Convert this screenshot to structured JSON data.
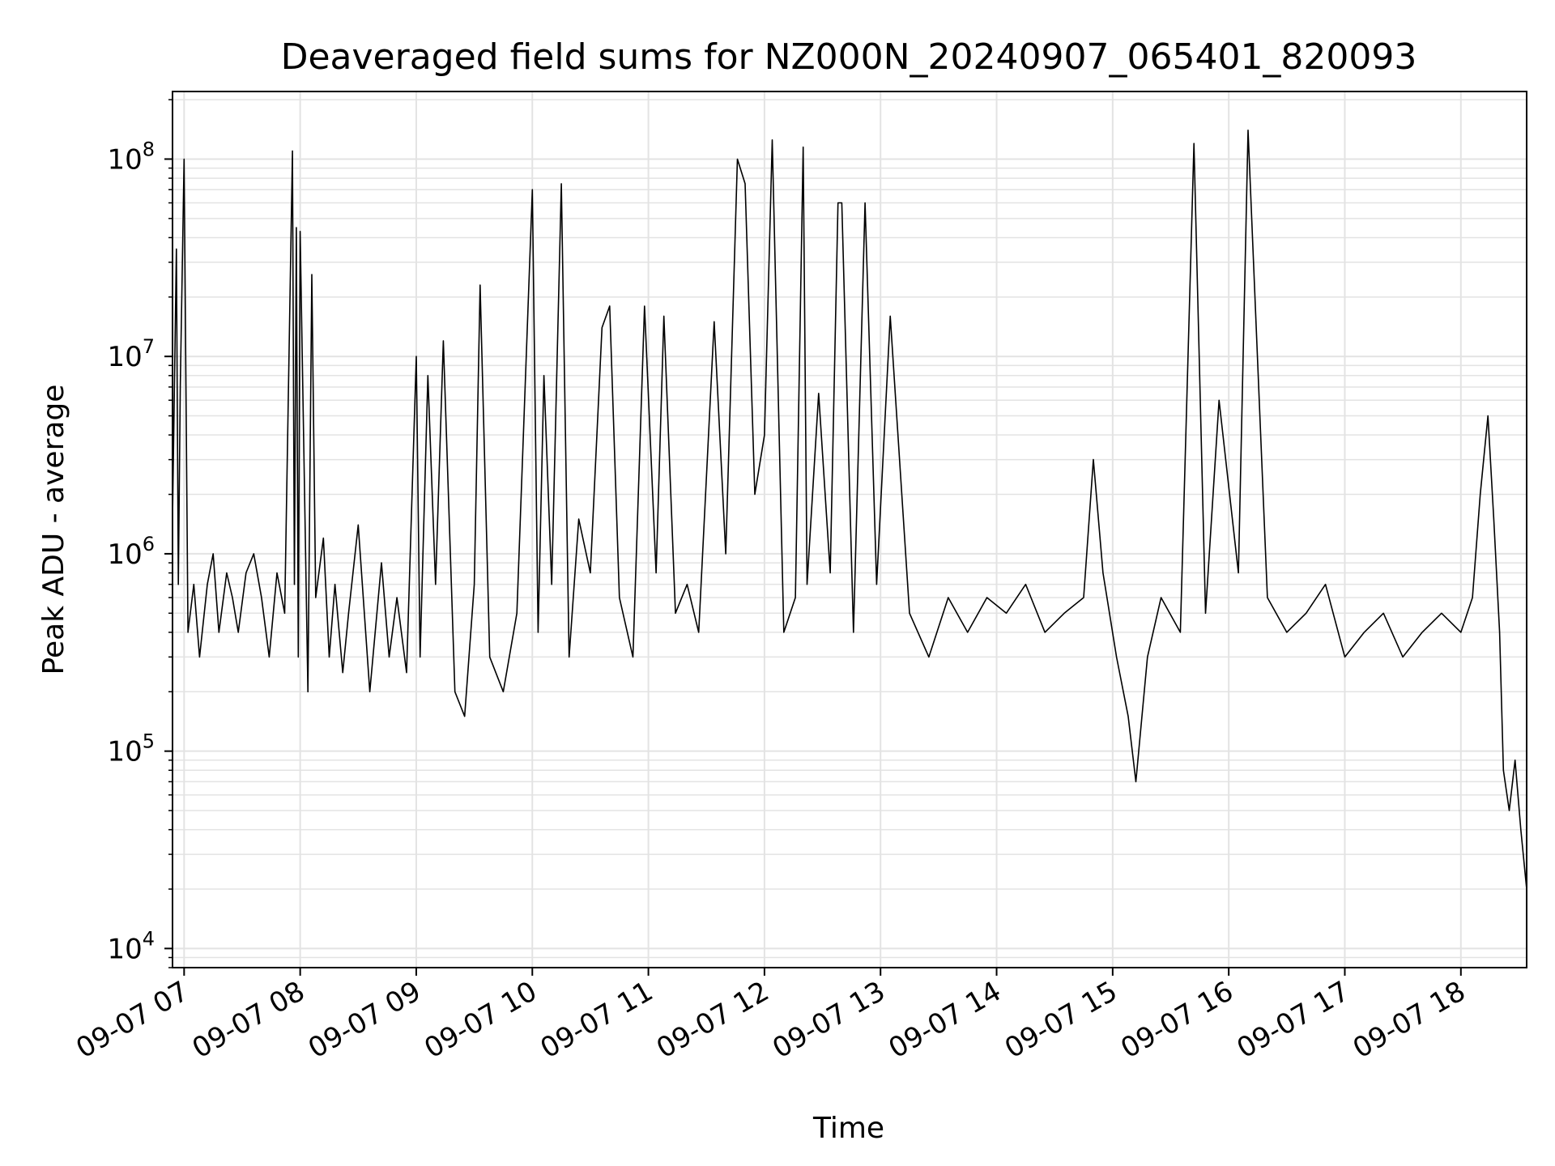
{
  "chart_data": {
    "type": "line",
    "title": "Deaveraged field sums for NZ000N_20240907_065401_820093",
    "xlabel": "Time",
    "ylabel": "Peak ADU - average",
    "yscale": "log",
    "ylim": [
      8000,
      220000000
    ],
    "xlim": [
      "2024-09-07 06:54",
      "2024-09-07 18:34"
    ],
    "grid": true,
    "legend": "none",
    "line_color": "#000000",
    "x_ticks": [
      {
        "at": "2024-09-07 07:00",
        "label": "09-07 07"
      },
      {
        "at": "2024-09-07 08:00",
        "label": "09-07 08"
      },
      {
        "at": "2024-09-07 09:00",
        "label": "09-07 09"
      },
      {
        "at": "2024-09-07 10:00",
        "label": "09-07 10"
      },
      {
        "at": "2024-09-07 11:00",
        "label": "09-07 11"
      },
      {
        "at": "2024-09-07 12:00",
        "label": "09-07 12"
      },
      {
        "at": "2024-09-07 13:00",
        "label": "09-07 13"
      },
      {
        "at": "2024-09-07 14:00",
        "label": "09-07 14"
      },
      {
        "at": "2024-09-07 15:00",
        "label": "09-07 15"
      },
      {
        "at": "2024-09-07 16:00",
        "label": "09-07 16"
      },
      {
        "at": "2024-09-07 17:00",
        "label": "09-07 17"
      },
      {
        "at": "2024-09-07 18:00",
        "label": "09-07 18"
      }
    ],
    "y_ticks": [
      {
        "value": 10000,
        "base": "10",
        "exp": "4"
      },
      {
        "value": 100000,
        "base": "10",
        "exp": "5"
      },
      {
        "value": 1000000,
        "base": "10",
        "exp": "6"
      },
      {
        "value": 10000000,
        "base": "10",
        "exp": "7"
      },
      {
        "value": 100000000,
        "base": "10",
        "exp": "8"
      }
    ],
    "series": [
      {
        "x": [
          "2024-09-07 06:54",
          "2024-09-07 06:56",
          "2024-09-07 06:57",
          "2024-09-07 06:58",
          "2024-09-07 07:00",
          "2024-09-07 07:02",
          "2024-09-07 07:05",
          "2024-09-07 07:08",
          "2024-09-07 07:12",
          "2024-09-07 07:15",
          "2024-09-07 07:18",
          "2024-09-07 07:22",
          "2024-09-07 07:25",
          "2024-09-07 07:28",
          "2024-09-07 07:32",
          "2024-09-07 07:36",
          "2024-09-07 07:40",
          "2024-09-07 07:44",
          "2024-09-07 07:48",
          "2024-09-07 07:52",
          "2024-09-07 07:56",
          "2024-09-07 07:57",
          "2024-09-07 07:58",
          "2024-09-07 07:59",
          "2024-09-07 08:00",
          "2024-09-07 08:04",
          "2024-09-07 08:06",
          "2024-09-07 08:08",
          "2024-09-07 08:12",
          "2024-09-07 08:15",
          "2024-09-07 08:18",
          "2024-09-07 08:22",
          "2024-09-07 08:25",
          "2024-09-07 08:30",
          "2024-09-07 08:36",
          "2024-09-07 08:42",
          "2024-09-07 08:46",
          "2024-09-07 08:50",
          "2024-09-07 08:55",
          "2024-09-07 09:00",
          "2024-09-07 09:02",
          "2024-09-07 09:06",
          "2024-09-07 09:10",
          "2024-09-07 09:14",
          "2024-09-07 09:20",
          "2024-09-07 09:25",
          "2024-09-07 09:30",
          "2024-09-07 09:33",
          "2024-09-07 09:38",
          "2024-09-07 09:45",
          "2024-09-07 09:52",
          "2024-09-07 10:00",
          "2024-09-07 10:03",
          "2024-09-07 10:06",
          "2024-09-07 10:10",
          "2024-09-07 10:15",
          "2024-09-07 10:19",
          "2024-09-07 10:24",
          "2024-09-07 10:30",
          "2024-09-07 10:36",
          "2024-09-07 10:40",
          "2024-09-07 10:45",
          "2024-09-07 10:52",
          "2024-09-07 10:58",
          "2024-09-07 11:04",
          "2024-09-07 11:08",
          "2024-09-07 11:14",
          "2024-09-07 11:20",
          "2024-09-07 11:26",
          "2024-09-07 11:34",
          "2024-09-07 11:40",
          "2024-09-07 11:46",
          "2024-09-07 11:50",
          "2024-09-07 11:55",
          "2024-09-07 12:00",
          "2024-09-07 12:04",
          "2024-09-07 12:10",
          "2024-09-07 12:16",
          "2024-09-07 12:20",
          "2024-09-07 12:22",
          "2024-09-07 12:28",
          "2024-09-07 12:34",
          "2024-09-07 12:38",
          "2024-09-07 12:40",
          "2024-09-07 12:46",
          "2024-09-07 12:52",
          "2024-09-07 12:58",
          "2024-09-07 13:05",
          "2024-09-07 13:15",
          "2024-09-07 13:25",
          "2024-09-07 13:35",
          "2024-09-07 13:45",
          "2024-09-07 13:55",
          "2024-09-07 14:05",
          "2024-09-07 14:15",
          "2024-09-07 14:25",
          "2024-09-07 14:35",
          "2024-09-07 14:45",
          "2024-09-07 14:50",
          "2024-09-07 14:55",
          "2024-09-07 15:02",
          "2024-09-07 15:08",
          "2024-09-07 15:12",
          "2024-09-07 15:18",
          "2024-09-07 15:25",
          "2024-09-07 15:35",
          "2024-09-07 15:42",
          "2024-09-07 15:48",
          "2024-09-07 15:55",
          "2024-09-07 16:05",
          "2024-09-07 16:10",
          "2024-09-07 16:20",
          "2024-09-07 16:30",
          "2024-09-07 16:40",
          "2024-09-07 16:50",
          "2024-09-07 17:00",
          "2024-09-07 17:10",
          "2024-09-07 17:20",
          "2024-09-07 17:30",
          "2024-09-07 17:40",
          "2024-09-07 17:50",
          "2024-09-07 18:00",
          "2024-09-07 18:06",
          "2024-09-07 18:10",
          "2024-09-07 18:14",
          "2024-09-07 18:17",
          "2024-09-07 18:20",
          "2024-09-07 18:22",
          "2024-09-07 18:25",
          "2024-09-07 18:28",
          "2024-09-07 18:31",
          "2024-09-07 18:34"
        ],
        "y": [
          1500000,
          35000000,
          700000,
          7000000,
          100000000,
          400000,
          700000,
          300000,
          700000,
          1000000,
          400000,
          800000,
          600000,
          400000,
          800000,
          1000000,
          600000,
          300000,
          800000,
          500000,
          110000000,
          700000,
          45000000,
          300000,
          43000000,
          200000,
          26000000,
          600000,
          1200000,
          300000,
          700000,
          250000,
          500000,
          1400000,
          200000,
          900000,
          300000,
          600000,
          250000,
          10000000,
          300000,
          8000000,
          700000,
          12000000,
          200000,
          150000,
          700000,
          23000000,
          300000,
          200000,
          500000,
          70000000,
          400000,
          8000000,
          700000,
          75000000,
          300000,
          1500000,
          800000,
          14000000,
          18000000,
          600000,
          300000,
          18000000,
          800000,
          16000000,
          500000,
          700000,
          400000,
          15000000,
          1000000,
          100000000,
          75000000,
          2000000,
          4000000,
          125000000,
          400000,
          600000,
          115000000,
          700000,
          6500000,
          800000,
          60000000,
          60000000,
          400000,
          60000000,
          700000,
          16000000,
          500000,
          300000,
          600000,
          400000,
          600000,
          500000,
          700000,
          400000,
          500000,
          600000,
          3000000,
          800000,
          300000,
          150000,
          70000,
          300000,
          600000,
          400000,
          120000000,
          500000,
          6000000,
          800000,
          140000000,
          600000,
          400000,
          500000,
          700000,
          300000,
          400000,
          500000,
          300000,
          400000,
          500000,
          400000,
          600000,
          2000000,
          5000000,
          1500000,
          400000,
          80000,
          50000,
          90000,
          40000,
          20000
        ]
      }
    ]
  }
}
